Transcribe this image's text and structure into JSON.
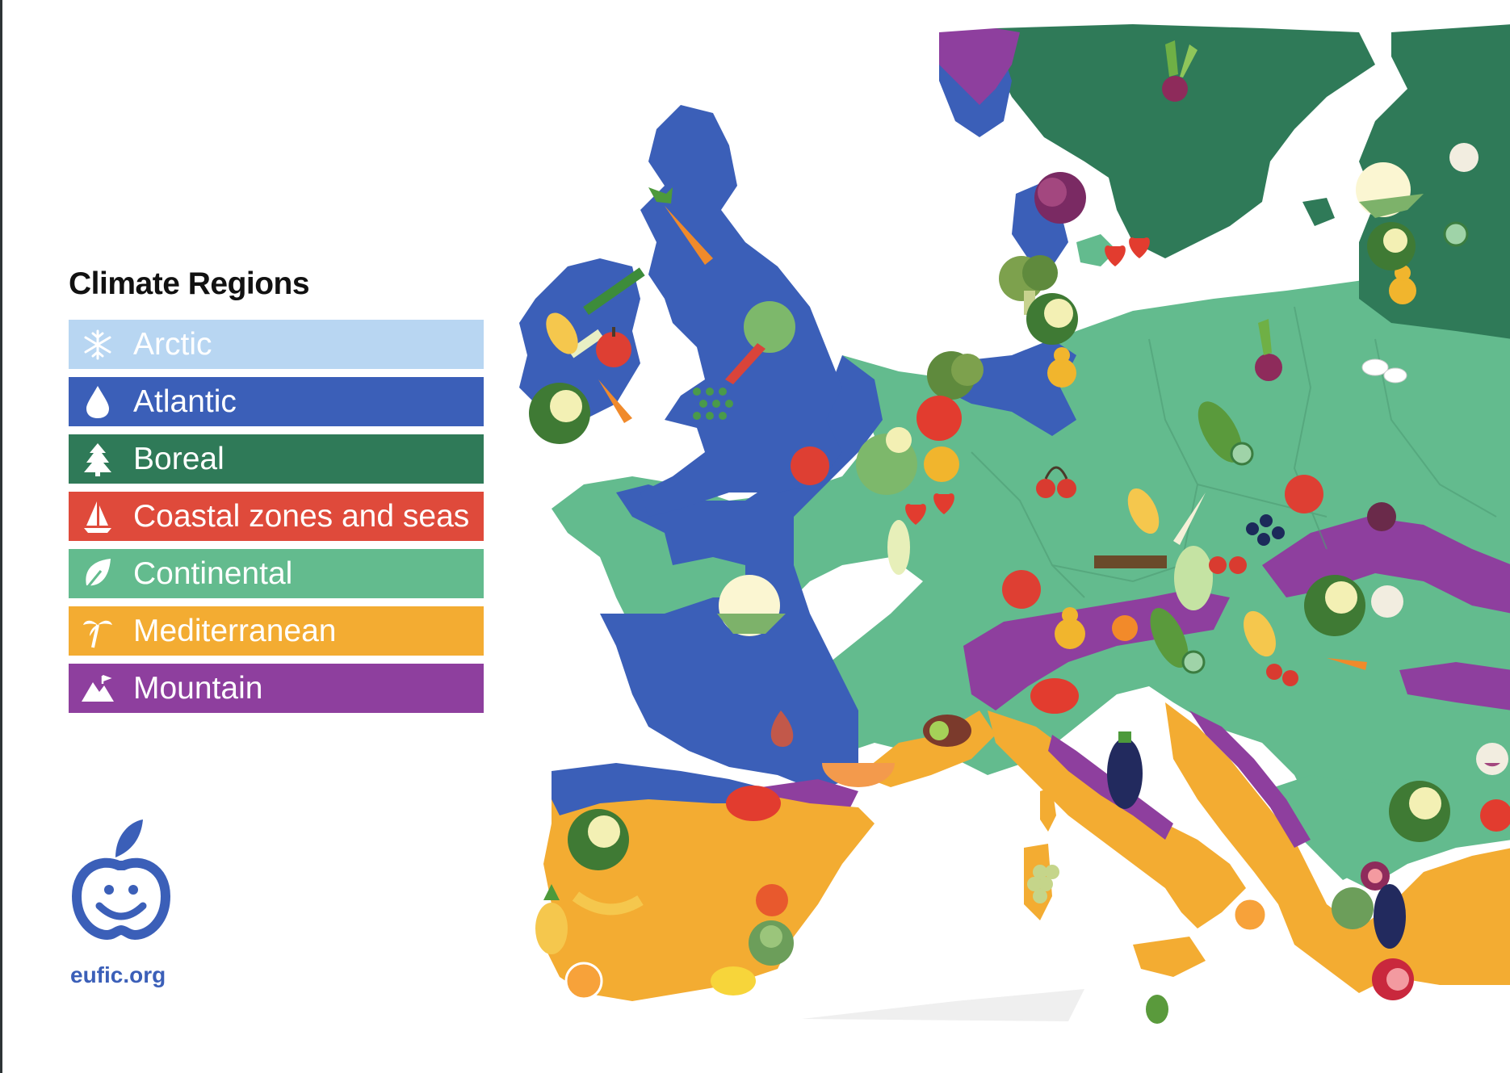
{
  "legend": {
    "title": "Climate Regions",
    "items": [
      {
        "label": "Arctic",
        "color": "#b8d6f2",
        "icon": "snowflake-icon"
      },
      {
        "label": "Atlantic",
        "color": "#3b5fb8",
        "icon": "water-drop-icon"
      },
      {
        "label": "Boreal",
        "color": "#2f7a58",
        "icon": "pine-tree-icon"
      },
      {
        "label": "Coastal zones and seas",
        "color": "#df4a3b",
        "icon": "sailboat-icon"
      },
      {
        "label": "Continental",
        "color": "#63bb8e",
        "icon": "leaf-icon"
      },
      {
        "label": "Mediterranean",
        "color": "#f3ac32",
        "icon": "palm-tree-icon"
      },
      {
        "label": "Mountain",
        "color": "#8e3f9e",
        "icon": "mountain-icon"
      }
    ]
  },
  "logo": {
    "url_text": "eufic.org",
    "color": "#3b5fb8",
    "icon": "apple-smile-logo-icon"
  },
  "map": {
    "region_colors": {
      "atlantic": "#3b5fb8",
      "boreal": "#2f7a58",
      "continental": "#63bb8e",
      "mediterranean": "#f3ac32",
      "mountain": "#8e3f9e"
    },
    "food_icons": [
      "carrot-icon",
      "leek-icon",
      "cabbage-icon",
      "apple-icon",
      "peas-icon",
      "rhubarb-icon",
      "beetroot-icon",
      "red-cabbage-icon",
      "broccoli-icon",
      "strawberry-icon",
      "pear-icon",
      "tomato-icon",
      "cherry-icon",
      "cucumber-icon",
      "blackcurrant-icon",
      "cauliflower-icon",
      "melon-icon",
      "eggplant-icon",
      "artichoke-icon",
      "lemon-icon",
      "pineapple-icon",
      "fig-icon",
      "pomegranate-icon",
      "mushroom-icon"
    ]
  }
}
